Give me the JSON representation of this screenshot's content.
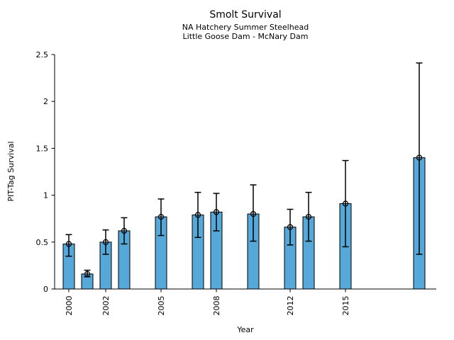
{
  "chart_data": {
    "type": "bar",
    "title": "Smolt Survival",
    "subtitle1": "NA Hatchery Summer Steelhead",
    "subtitle2": "Little Goose Dam - McNary Dam",
    "xlabel": "Year",
    "ylabel": "PIT-Tag Survival",
    "ylim": [
      0,
      2.5
    ],
    "xlim": [
      1999.2,
      2019.9
    ],
    "grid": false,
    "legend": "none",
    "yticks": [
      "0",
      "0.5",
      "1",
      "1.5",
      "2",
      "2.5"
    ],
    "ytick_values": [
      0,
      0.5,
      1,
      1.5,
      2,
      2.5
    ],
    "xticks": [
      "2000",
      "2002",
      "2005",
      "2008",
      "2012",
      "2015"
    ],
    "xtick_values": [
      2000,
      2002,
      2005,
      2008,
      2012,
      2015
    ],
    "bar_width_years": 0.62,
    "marker": "open-circle",
    "colors": {
      "bar_fill": "#56a8d8",
      "bar_edge": "#000000",
      "error_bar": "#000000",
      "marker_edge": "#000000",
      "axis": "#000000",
      "text": "#000000",
      "background": "#ffffff"
    },
    "points": [
      {
        "year": 2000,
        "value": 0.48,
        "ci_low": 0.35,
        "ci_high": 0.58
      },
      {
        "year": 2001,
        "value": 0.16,
        "ci_low": 0.13,
        "ci_high": 0.2
      },
      {
        "year": 2002,
        "value": 0.5,
        "ci_low": 0.37,
        "ci_high": 0.63
      },
      {
        "year": 2003,
        "value": 0.62,
        "ci_low": 0.48,
        "ci_high": 0.76
      },
      {
        "year": 2005,
        "value": 0.77,
        "ci_low": 0.57,
        "ci_high": 0.96
      },
      {
        "year": 2007,
        "value": 0.79,
        "ci_low": 0.55,
        "ci_high": 1.03
      },
      {
        "year": 2008,
        "value": 0.82,
        "ci_low": 0.62,
        "ci_high": 1.02
      },
      {
        "year": 2010,
        "value": 0.8,
        "ci_low": 0.51,
        "ci_high": 1.11
      },
      {
        "year": 2012,
        "value": 0.66,
        "ci_low": 0.47,
        "ci_high": 0.85
      },
      {
        "year": 2013,
        "value": 0.77,
        "ci_low": 0.51,
        "ci_high": 1.03
      },
      {
        "year": 2015,
        "value": 0.91,
        "ci_low": 0.45,
        "ci_high": 1.37
      },
      {
        "year": 2019,
        "value": 1.4,
        "ci_low": 0.37,
        "ci_high": 2.41
      }
    ]
  }
}
